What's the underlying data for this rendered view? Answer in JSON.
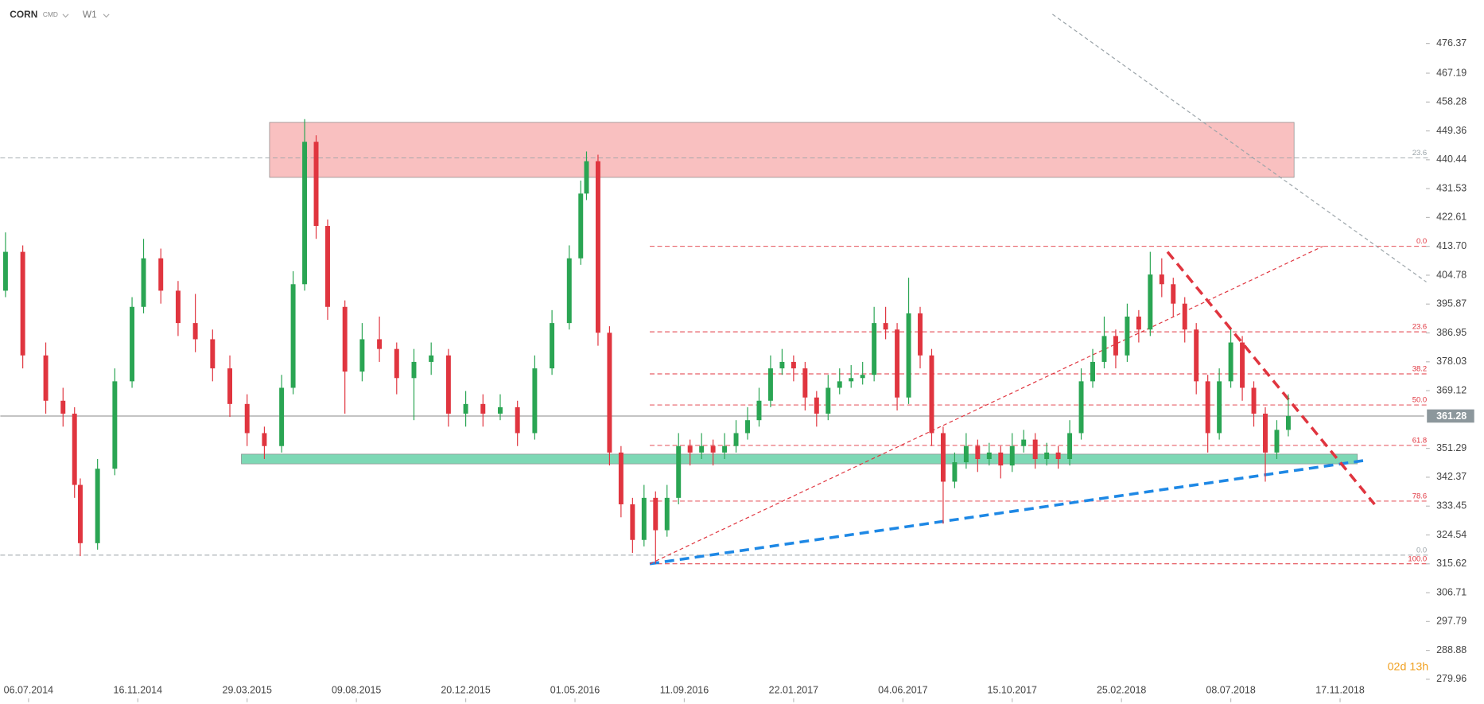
{
  "header": {
    "symbol": "CORN",
    "market": "CMD",
    "interval": "W1"
  },
  "chart_data": {
    "type": "candlestick",
    "colors": {
      "up": "#2aa553",
      "down": "#e0353f"
    },
    "x": [
      -4,
      -1,
      3,
      6,
      8,
      9,
      12,
      15,
      18,
      20,
      23,
      26,
      29,
      32,
      35,
      38,
      41,
      44,
      46,
      48,
      50,
      52,
      55,
      58,
      61,
      64,
      67,
      70,
      73,
      76,
      79,
      82,
      85,
      88,
      91,
      94,
      96,
      97,
      99,
      101,
      103,
      105,
      107,
      109,
      111,
      113,
      115,
      117,
      119,
      121,
      123,
      125,
      127,
      129,
      131,
      133,
      135,
      137,
      139,
      141,
      143,
      145,
      147,
      149,
      151,
      153,
      155,
      157,
      159,
      161,
      163,
      165,
      167,
      169,
      171,
      173,
      175,
      177,
      179,
      181,
      183,
      185,
      187,
      189,
      191,
      193,
      195,
      197,
      199,
      201,
      203,
      205,
      207,
      209,
      211,
      213,
      215,
      217,
      219
    ],
    "candles": [
      [
        400,
        418,
        398,
        412
      ],
      [
        412,
        414,
        376,
        380
      ],
      [
        380,
        384,
        362,
        366
      ],
      [
        366,
        370,
        358,
        362
      ],
      [
        362,
        364,
        336,
        340
      ],
      [
        340,
        342,
        318,
        322
      ],
      [
        322,
        348,
        320,
        345
      ],
      [
        345,
        376,
        343,
        372
      ],
      [
        372,
        398,
        370,
        395
      ],
      [
        395,
        416,
        393,
        410
      ],
      [
        410,
        413,
        396,
        400
      ],
      [
        400,
        403,
        386,
        390
      ],
      [
        390,
        399,
        381,
        385
      ],
      [
        385,
        388,
        372,
        376
      ],
      [
        376,
        380,
        361,
        365
      ],
      [
        365,
        368,
        352,
        356
      ],
      [
        356,
        358,
        348,
        352
      ],
      [
        352,
        374,
        350,
        370
      ],
      [
        370,
        406,
        368,
        402
      ],
      [
        402,
        453,
        400,
        446
      ],
      [
        446,
        448,
        416,
        420
      ],
      [
        420,
        422,
        391,
        395
      ],
      [
        395,
        397,
        362,
        375
      ],
      [
        375,
        390,
        372,
        385
      ],
      [
        385,
        392,
        378,
        382
      ],
      [
        382,
        384,
        368,
        373
      ],
      [
        373,
        382,
        360,
        378
      ],
      [
        378,
        384,
        374,
        380
      ],
      [
        380,
        382,
        358,
        362
      ],
      [
        362,
        369,
        358,
        365
      ],
      [
        365,
        368,
        358,
        362
      ],
      [
        362,
        368,
        360,
        364
      ],
      [
        364,
        366,
        352,
        356
      ],
      [
        356,
        380,
        354,
        376
      ],
      [
        376,
        394,
        374,
        390
      ],
      [
        390,
        414,
        388,
        410
      ],
      [
        410,
        434,
        408,
        430
      ],
      [
        430,
        443,
        428,
        440
      ],
      [
        440,
        442,
        383,
        387
      ],
      [
        387,
        389,
        346,
        350
      ],
      [
        350,
        352,
        330,
        334
      ],
      [
        334,
        336,
        319,
        323
      ],
      [
        323,
        340,
        321,
        336
      ],
      [
        336,
        338,
        315.62,
        326
      ],
      [
        326,
        340,
        324,
        336
      ],
      [
        336,
        356,
        334,
        352
      ],
      [
        352,
        354,
        346,
        350
      ],
      [
        350,
        356,
        348,
        352
      ],
      [
        352,
        354,
        346,
        350
      ],
      [
        350,
        356,
        348,
        352
      ],
      [
        352,
        360,
        350,
        356
      ],
      [
        356,
        364,
        354,
        360
      ],
      [
        360,
        370,
        358,
        366
      ],
      [
        366,
        380,
        364,
        376
      ],
      [
        376,
        382,
        374,
        378
      ],
      [
        378,
        380,
        372,
        376
      ],
      [
        376,
        378,
        363,
        367
      ],
      [
        367,
        369,
        358,
        362
      ],
      [
        362,
        374,
        360,
        370
      ],
      [
        370,
        376,
        368,
        372
      ],
      [
        372,
        377,
        370,
        373
      ],
      [
        373,
        378,
        371,
        374
      ],
      [
        374,
        395,
        372,
        390
      ],
      [
        390,
        395,
        385,
        388
      ],
      [
        388,
        390,
        363,
        367
      ],
      [
        367,
        404,
        365,
        393
      ],
      [
        393,
        395,
        376,
        380
      ],
      [
        380,
        382,
        352,
        356
      ],
      [
        356,
        358,
        328,
        341
      ],
      [
        341,
        350,
        339,
        347
      ],
      [
        347,
        356,
        345,
        352
      ],
      [
        352,
        354,
        344,
        348
      ],
      [
        348,
        353,
        346,
        350
      ],
      [
        350,
        352,
        342,
        346
      ],
      [
        346,
        356,
        344,
        352
      ],
      [
        352,
        357,
        350,
        354
      ],
      [
        354,
        356,
        345,
        348
      ],
      [
        348,
        353,
        346,
        350
      ],
      [
        350,
        352,
        345,
        348
      ],
      [
        348,
        360,
        346,
        356
      ],
      [
        356,
        376,
        354,
        372
      ],
      [
        372,
        382,
        370,
        378
      ],
      [
        378,
        392,
        376,
        386
      ],
      [
        386,
        388,
        376,
        380
      ],
      [
        380,
        396,
        378,
        392
      ],
      [
        392,
        394,
        384,
        388
      ],
      [
        388,
        412,
        386,
        405
      ],
      [
        405,
        410,
        398,
        402
      ],
      [
        402,
        404,
        392,
        396
      ],
      [
        396,
        398,
        384,
        388
      ],
      [
        388,
        390,
        368,
        372
      ],
      [
        372,
        374,
        350,
        356
      ],
      [
        356,
        376,
        354,
        372
      ],
      [
        372,
        388,
        370,
        384
      ],
      [
        384,
        386,
        366,
        370
      ],
      [
        370,
        372,
        358,
        362
      ],
      [
        362,
        364,
        341,
        350
      ],
      [
        350,
        360,
        348,
        357
      ],
      [
        357,
        368,
        355,
        361.28
      ]
    ],
    "xlim": [
      -4.9,
      242.6
    ],
    "ylim": [
      272.9,
      489.8
    ],
    "xticks": [
      {
        "value": 0,
        "label": "06.07.2014"
      },
      {
        "value": 19,
        "label": "16.11.2014"
      },
      {
        "value": 38,
        "label": "29.03.2015"
      },
      {
        "value": 57,
        "label": "09.08.2015"
      },
      {
        "value": 76,
        "label": "20.12.2015"
      },
      {
        "value": 95,
        "label": "01.05.2016"
      },
      {
        "value": 114,
        "label": "11.09.2016"
      },
      {
        "value": 133,
        "label": "22.01.2017"
      },
      {
        "value": 152,
        "label": "04.06.2017"
      },
      {
        "value": 171,
        "label": "15.10.2017"
      },
      {
        "value": 190,
        "label": "25.02.2018"
      },
      {
        "value": 209,
        "label": "08.07.2018"
      },
      {
        "value": 228,
        "label": "17.11.2018"
      }
    ],
    "yticks": [
      476.37,
      467.19,
      458.28,
      449.36,
      440.44,
      431.53,
      422.61,
      {
        "value": 413.7,
        "label": "413.70"
      },
      404.78,
      395.87,
      386.95,
      378.03,
      369.12,
      351.29,
      342.37,
      333.45,
      324.54,
      315.62,
      306.71,
      297.79,
      288.88,
      279.96
    ],
    "last_price": 361.28,
    "zones": [
      {
        "x": [
          41.9,
          220
        ],
        "y": [
          435,
          452
        ],
        "color": "rgba(244,140,140,0.55)"
      },
      {
        "x": [
          37,
          231
        ],
        "y": [
          346.5,
          349.5
        ],
        "color": "rgba(70,200,150,0.7)"
      }
    ],
    "fib_levels": [
      {
        "value": 441,
        "label": "23.6",
        "color": "#9aa3a8",
        "x0": -4.9
      },
      {
        "value": 318.3,
        "label": "0.0",
        "color": "#9aa3a8",
        "x0": -4.9
      },
      {
        "value": 413.7,
        "label": "0.0",
        "color": "#e0353f",
        "x0": 108
      },
      {
        "value": 387.3,
        "label": "23.6",
        "color": "#e0353f",
        "x0": 108
      },
      {
        "value": 374.3,
        "label": "38.2",
        "color": "#e0353f",
        "x0": 108
      },
      {
        "value": 364.7,
        "label": "50.0",
        "color": "#e0353f",
        "x0": 108
      },
      {
        "value": 352.2,
        "label": "61.8",
        "color": "#e0353f",
        "x0": 108
      },
      {
        "value": 335,
        "label": "78.6",
        "color": "#e0353f",
        "x0": 108
      },
      {
        "value": 315.62,
        "label": "100.0",
        "color": "#e0353f",
        "x0": 108
      }
    ],
    "trend_lines": [
      {
        "points": [
          [
            108,
            315.62
          ],
          [
            232,
            347.5
          ]
        ],
        "color": "#1e88e5",
        "width": 3,
        "dash": "10 6"
      },
      {
        "points": [
          [
            108,
            315.62
          ],
          [
            225,
            413.7
          ]
        ],
        "color": "#e0353f",
        "width": 1,
        "dash": "4 3"
      },
      {
        "points": [
          [
            198,
            412
          ],
          [
            234,
            334
          ]
        ],
        "color": "#e0353f",
        "width": 3,
        "dash": "10 6"
      },
      {
        "points": [
          [
            178,
            485.4
          ],
          [
            243,
            402.7
          ]
        ],
        "color": "#9aa3a8",
        "width": 1,
        "dash": "4 3"
      }
    ],
    "countdown": "02d 13h"
  }
}
